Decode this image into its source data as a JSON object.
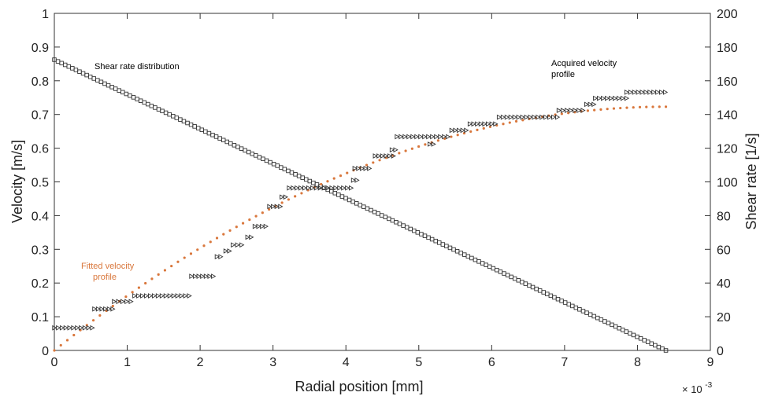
{
  "chart_data": {
    "type": "scatter",
    "xlabel": "Radial position [mm]",
    "ylabel": "Velocity [m/s]",
    "y2label": "Shear rate [1/s]",
    "x_exponent_base": "× 10",
    "x_exponent_power": "-3",
    "xlim": [
      0,
      0.009
    ],
    "ylim": [
      0,
      1
    ],
    "y2lim": [
      0,
      200
    ],
    "x_ticks": [
      0,
      0.001,
      0.002,
      0.003,
      0.004,
      0.005,
      0.006,
      0.007,
      0.008,
      0.009
    ],
    "x_tick_labels": [
      "0",
      "1",
      "2",
      "3",
      "4",
      "5",
      "6",
      "7",
      "8",
      "9"
    ],
    "y_ticks": [
      0,
      0.1,
      0.2,
      0.3,
      0.4,
      0.5,
      0.6,
      0.7,
      0.8,
      0.9,
      1
    ],
    "y_tick_labels": [
      "0",
      "0.1",
      "0.2",
      "0.3",
      "0.4",
      "0.5",
      "0.6",
      "0.7",
      "0.8",
      "0.9",
      "1"
    ],
    "y2_ticks": [
      0,
      20,
      40,
      60,
      80,
      100,
      120,
      140,
      160,
      180,
      200
    ],
    "y2_tick_labels": [
      "0",
      "20",
      "40",
      "60",
      "80",
      "100",
      "120",
      "140",
      "160",
      "180",
      "200"
    ],
    "grid": false,
    "colors": {
      "fitted": "#d9773c",
      "markers": "#333333",
      "axis": "#333333"
    },
    "annotations": [
      {
        "text": "Shear rate distribution",
        "color": "#000000"
      },
      {
        "text": "Acquired velocity",
        "color": "#000000"
      },
      {
        "text": "profile",
        "color": "#000000"
      },
      {
        "text": "Fitted velocity",
        "color": "#d9773c"
      },
      {
        "text": "profile",
        "color": "#d9773c"
      }
    ],
    "series": [
      {
        "name": "Shear rate distribution",
        "axis": "right",
        "marker": "square",
        "x_range": [
          0,
          0.00839
        ],
        "values_range": [
          172.5,
          0
        ],
        "n_points": 171
      },
      {
        "name": "Fitted velocity profile",
        "axis": "left",
        "marker": "dot",
        "x_range": [
          0,
          0.00839
        ],
        "peak_value": 0.723,
        "n_points": 95
      },
      {
        "name": "Acquired velocity profile",
        "axis": "left",
        "marker": "triangle-right",
        "segments": [
          {
            "x0": 0.0,
            "x1": 0.00052,
            "value": 0.067
          },
          {
            "x0": 0.00055,
            "x1": 0.0008,
            "value": 0.123
          },
          {
            "x0": 0.00082,
            "x1": 0.00105,
            "value": 0.145
          },
          {
            "x0": 0.0011,
            "x1": 0.00185,
            "value": 0.162
          },
          {
            "x0": 0.00188,
            "x1": 0.00218,
            "value": 0.22
          },
          {
            "x0": 0.00223,
            "x1": 0.00228,
            "value": 0.278
          },
          {
            "x0": 0.00235,
            "x1": 0.0024,
            "value": 0.295
          },
          {
            "x0": 0.00245,
            "x1": 0.00257,
            "value": 0.313
          },
          {
            "x0": 0.00265,
            "x1": 0.0027,
            "value": 0.336
          },
          {
            "x0": 0.00275,
            "x1": 0.0029,
            "value": 0.368
          },
          {
            "x0": 0.00295,
            "x1": 0.0031,
            "value": 0.427
          },
          {
            "x0": 0.00312,
            "x1": 0.00317,
            "value": 0.455
          },
          {
            "x0": 0.00322,
            "x1": 0.00407,
            "value": 0.482
          },
          {
            "x0": 0.0041,
            "x1": 0.00415,
            "value": 0.505
          },
          {
            "x0": 0.00412,
            "x1": 0.00432,
            "value": 0.54
          },
          {
            "x0": 0.0044,
            "x1": 0.00465,
            "value": 0.577
          },
          {
            "x0": 0.00463,
            "x1": 0.00468,
            "value": 0.595
          },
          {
            "x0": 0.0047,
            "x1": 0.0054,
            "value": 0.634
          },
          {
            "x0": 0.00515,
            "x1": 0.0052,
            "value": 0.612
          },
          {
            "x0": 0.00545,
            "x1": 0.00565,
            "value": 0.653
          },
          {
            "x0": 0.0057,
            "x1": 0.00605,
            "value": 0.672
          },
          {
            "x0": 0.0061,
            "x1": 0.0069,
            "value": 0.692
          },
          {
            "x0": 0.00692,
            "x1": 0.00725,
            "value": 0.712
          },
          {
            "x0": 0.0073,
            "x1": 0.0074,
            "value": 0.73
          },
          {
            "x0": 0.00742,
            "x1": 0.00785,
            "value": 0.748
          },
          {
            "x0": 0.00785,
            "x1": 0.00838,
            "value": 0.766
          }
        ]
      }
    ]
  }
}
